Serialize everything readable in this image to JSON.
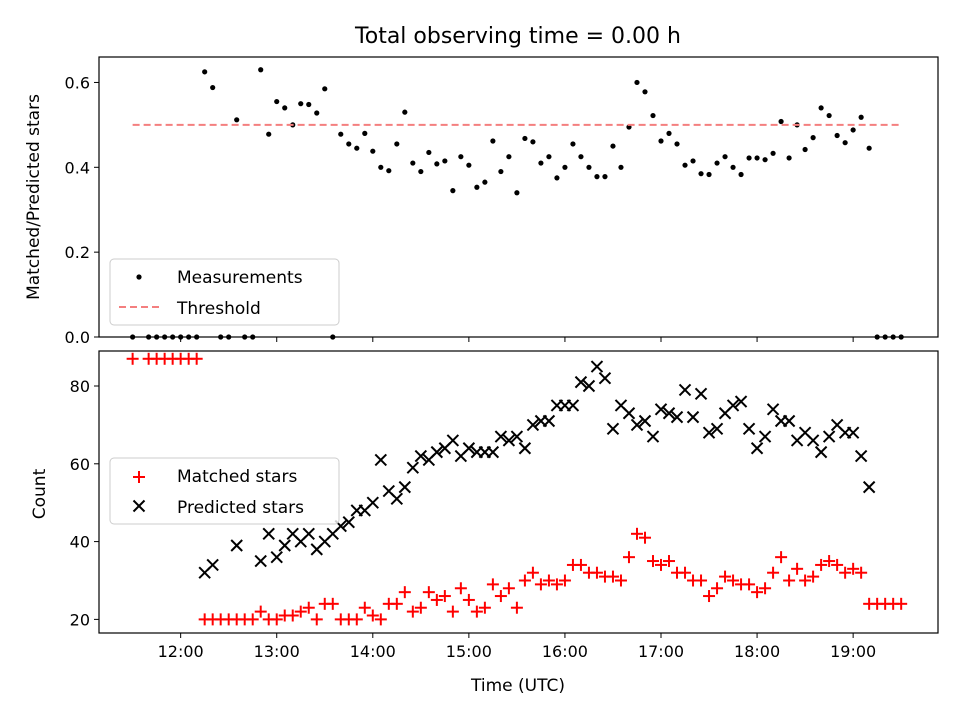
{
  "chart_data": [
    {
      "type": "scatter",
      "title": "Total observing time = 0.00 h",
      "xlabel": "",
      "ylabel": "Matched/Predicted stars",
      "xlim": [
        "11:09",
        "19:53"
      ],
      "ylim": [
        0.0,
        0.66
      ],
      "yticks": [
        0.0,
        0.2,
        0.4,
        0.6
      ],
      "ytick_labels": [
        "0.0",
        "0.2",
        "0.4",
        "0.6"
      ],
      "grid": false,
      "legend": "lower-left",
      "series": [
        {
          "name": "Measurements",
          "marker": "dot",
          "color": "#000000",
          "x": [
            "11:30",
            "11:40",
            "11:45",
            "11:50",
            "11:55",
            "12:00",
            "12:05",
            "12:10",
            "12:15",
            "12:20",
            "12:25",
            "12:30",
            "12:35",
            "12:40",
            "12:45",
            "12:50",
            "12:55",
            "13:00",
            "13:05",
            "13:10",
            "13:15",
            "13:20",
            "13:25",
            "13:30",
            "13:35",
            "13:40",
            "13:45",
            "13:50",
            "13:55",
            "14:00",
            "14:05",
            "14:10",
            "14:15",
            "14:20",
            "14:25",
            "14:30",
            "14:35",
            "14:40",
            "14:45",
            "14:50",
            "14:55",
            "15:00",
            "15:05",
            "15:10",
            "15:15",
            "15:20",
            "15:25",
            "15:30",
            "15:35",
            "15:40",
            "15:45",
            "15:50",
            "15:55",
            "16:00",
            "16:05",
            "16:10",
            "16:15",
            "16:20",
            "16:25",
            "16:30",
            "16:35",
            "16:40",
            "16:45",
            "16:50",
            "16:55",
            "17:00",
            "17:05",
            "17:10",
            "17:15",
            "17:20",
            "17:25",
            "17:30",
            "17:35",
            "17:40",
            "17:45",
            "17:50",
            "17:55",
            "18:00",
            "18:05",
            "18:10",
            "18:15",
            "18:20",
            "18:25",
            "18:30",
            "18:35",
            "18:40",
            "18:45",
            "18:50",
            "18:55",
            "19:00",
            "19:05",
            "19:10",
            "19:15",
            "19:20",
            "19:25",
            "19:30"
          ],
          "y": [
            0.0,
            0.0,
            0.0,
            0.0,
            0.0,
            0.0,
            0.0,
            0.0,
            0.625,
            0.588,
            0.0,
            0.0,
            0.512,
            0.0,
            0.0,
            0.63,
            0.478,
            0.555,
            0.54,
            0.5,
            0.55,
            0.548,
            0.528,
            0.585,
            0.0,
            0.478,
            0.455,
            0.445,
            0.48,
            0.438,
            0.4,
            0.392,
            0.455,
            0.53,
            0.41,
            0.39,
            0.435,
            0.408,
            0.415,
            0.345,
            0.425,
            0.405,
            0.353,
            0.365,
            0.462,
            0.39,
            0.425,
            0.34,
            0.468,
            0.46,
            0.41,
            0.425,
            0.375,
            0.4,
            0.455,
            0.425,
            0.4,
            0.378,
            0.378,
            0.45,
            0.4,
            0.495,
            0.6,
            0.578,
            0.522,
            0.462,
            0.48,
            0.455,
            0.405,
            0.415,
            0.385,
            0.383,
            0.41,
            0.425,
            0.4,
            0.383,
            0.422,
            0.422,
            0.418,
            0.433,
            0.508,
            0.422,
            0.5,
            0.442,
            0.47,
            0.54,
            0.522,
            0.475,
            0.458,
            0.488,
            0.518,
            0.445,
            0.0,
            0.0,
            0.0,
            0.0
          ]
        },
        {
          "name": "Threshold",
          "line": "dashed",
          "color": "#f47f7f",
          "x": [
            "11:30",
            "19:30"
          ],
          "y": [
            0.5,
            0.5
          ]
        }
      ]
    },
    {
      "type": "scatter",
      "title": "",
      "xlabel": "Time (UTC)",
      "ylabel": "Count",
      "xlim": [
        "11:09",
        "19:53"
      ],
      "ylim": [
        16.5,
        89
      ],
      "yticks": [
        20,
        40,
        60,
        80
      ],
      "ytick_labels": [
        "20",
        "40",
        "60",
        "80"
      ],
      "xticks": [
        "12:00",
        "13:00",
        "14:00",
        "15:00",
        "16:00",
        "17:00",
        "18:00",
        "19:00"
      ],
      "grid": false,
      "legend": "center-left",
      "series": [
        {
          "name": "Matched stars",
          "marker": "plus",
          "color": "#ff0000",
          "x": [
            "11:30",
            "11:40",
            "11:45",
            "11:50",
            "11:55",
            "12:00",
            "12:05",
            "12:10",
            "12:15",
            "12:20",
            "12:25",
            "12:30",
            "12:35",
            "12:40",
            "12:45",
            "12:50",
            "12:55",
            "13:00",
            "13:05",
            "13:10",
            "13:15",
            "13:20",
            "13:25",
            "13:30",
            "13:35",
            "13:40",
            "13:45",
            "13:50",
            "13:55",
            "14:00",
            "14:05",
            "14:10",
            "14:15",
            "14:20",
            "14:25",
            "14:30",
            "14:35",
            "14:40",
            "14:45",
            "14:50",
            "14:55",
            "15:00",
            "15:05",
            "15:10",
            "15:15",
            "15:20",
            "15:25",
            "15:30",
            "15:35",
            "15:40",
            "15:45",
            "15:50",
            "15:55",
            "16:00",
            "16:05",
            "16:10",
            "16:15",
            "16:20",
            "16:25",
            "16:30",
            "16:35",
            "16:40",
            "16:45",
            "16:50",
            "16:55",
            "17:00",
            "17:05",
            "17:10",
            "17:15",
            "17:20",
            "17:25",
            "17:30",
            "17:35",
            "17:40",
            "17:45",
            "17:50",
            "17:55",
            "18:00",
            "18:05",
            "18:10",
            "18:15",
            "18:20",
            "18:25",
            "18:30",
            "18:35",
            "18:40",
            "18:45",
            "18:50",
            "18:55",
            "19:00",
            "19:05",
            "19:10",
            "19:15",
            "19:20",
            "19:25",
            "19:30"
          ],
          "y": [
            87,
            87,
            87,
            87,
            87,
            87,
            87,
            87,
            20,
            20,
            20,
            20,
            20,
            20,
            20,
            22,
            20,
            20,
            21,
            21,
            22,
            23,
            20,
            24,
            24,
            20,
            20,
            20,
            23,
            21,
            20,
            24,
            24,
            27,
            22,
            23,
            27,
            25,
            26,
            22,
            28,
            25,
            22,
            23,
            29,
            26,
            28,
            23,
            30,
            32,
            29,
            30,
            29,
            30,
            34,
            34,
            32,
            32,
            31,
            31,
            30,
            36,
            42,
            41,
            35,
            34,
            35,
            32,
            32,
            30,
            30,
            26,
            28,
            31,
            30,
            29,
            29,
            27,
            28,
            32,
            36,
            30,
            33,
            30,
            31,
            34,
            35,
            34,
            32,
            33,
            32,
            24,
            24,
            24,
            24,
            24
          ]
        },
        {
          "name": "Predicted stars",
          "marker": "x",
          "color": "#000000",
          "x": [
            "12:15",
            "12:20",
            "12:35",
            "12:50",
            "12:55",
            "13:00",
            "13:05",
            "13:10",
            "13:15",
            "13:20",
            "13:25",
            "13:30",
            "13:35",
            "13:40",
            "13:45",
            "13:50",
            "13:55",
            "14:00",
            "14:05",
            "14:10",
            "14:15",
            "14:20",
            "14:25",
            "14:30",
            "14:35",
            "14:40",
            "14:45",
            "14:50",
            "14:55",
            "15:00",
            "15:05",
            "15:10",
            "15:15",
            "15:20",
            "15:25",
            "15:30",
            "15:35",
            "15:40",
            "15:45",
            "15:50",
            "15:55",
            "16:00",
            "16:05",
            "16:10",
            "16:15",
            "16:20",
            "16:25",
            "16:30",
            "16:35",
            "16:40",
            "16:45",
            "16:50",
            "16:55",
            "17:00",
            "17:05",
            "17:10",
            "17:15",
            "17:20",
            "17:25",
            "17:30",
            "17:35",
            "17:40",
            "17:45",
            "17:50",
            "17:55",
            "18:00",
            "18:05",
            "18:10",
            "18:15",
            "18:20",
            "18:25",
            "18:30",
            "18:35",
            "18:40",
            "18:45",
            "18:50",
            "18:55",
            "19:00",
            "19:05",
            "19:10"
          ],
          "y": [
            32,
            34,
            39,
            35,
            42,
            36,
            39,
            42,
            40,
            42,
            38,
            40,
            42,
            44,
            45,
            48,
            48,
            50,
            61,
            53,
            51,
            54,
            59,
            62,
            61,
            63,
            64,
            66,
            62,
            64,
            63,
            63,
            63,
            67,
            66,
            67,
            64,
            70,
            71,
            71,
            75,
            75,
            75,
            81,
            80,
            85,
            82,
            69,
            75,
            73,
            70,
            71,
            67,
            74,
            73,
            72,
            79,
            72,
            78,
            68,
            69,
            73,
            75,
            76,
            69,
            64,
            67,
            74,
            71,
            71,
            66,
            68,
            66,
            63,
            67,
            70,
            68,
            68,
            62,
            54
          ]
        }
      ]
    }
  ]
}
